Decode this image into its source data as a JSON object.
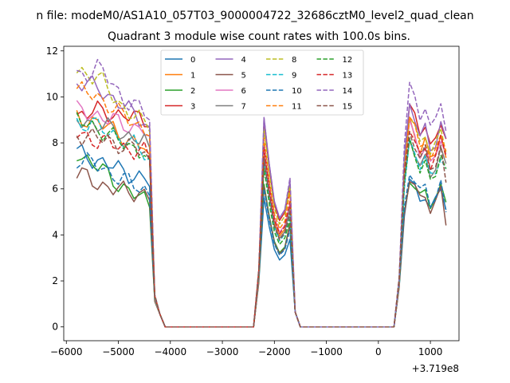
{
  "chart_data": {
    "type": "line",
    "suptitle": "n file: modeM0/AS1A10_057T03_9000004722_32686cztM0_level2_quad_clean",
    "title": "Quadrant 3 module wise count rates with 100.0s bins.",
    "xlabel": "",
    "ylabel": "",
    "offset_label": "+3.719e8",
    "xlim": [
      -6050,
      1550
    ],
    "ylim": [
      -0.6,
      12.2
    ],
    "xticks": [
      -6000,
      -5000,
      -4000,
      -3000,
      -2000,
      -1000,
      0,
      1000
    ],
    "xtick_labels": [
      "−6000",
      "−5000",
      "−4000",
      "−3000",
      "−2000",
      "−1000",
      "0",
      "1000"
    ],
    "yticks": [
      0,
      2,
      4,
      6,
      8,
      10,
      12
    ],
    "ytick_labels": [
      "0",
      "2",
      "4",
      "6",
      "8",
      "10",
      "12"
    ],
    "legend_position": "upper center",
    "segments": [
      {
        "x_start": -5800,
        "x_end": -4200
      },
      {
        "x_start": -2400,
        "x_end": -1600
      },
      {
        "x_start": 300,
        "x_end": 1200
      }
    ],
    "series": [
      {
        "name": "0",
        "color": "#1f77b4",
        "dash": "solid",
        "s1": [
          7.6,
          7.2,
          6.8,
          6.4
        ],
        "peak": 5.6,
        "s3": [
          6.3,
          5.2
        ]
      },
      {
        "name": "1",
        "color": "#ff7f0e",
        "dash": "solid",
        "s1": [
          9.1,
          8.9,
          8.3,
          7.8
        ],
        "peak": 7.6,
        "s3": [
          8.8,
          7.2
        ]
      },
      {
        "name": "2",
        "color": "#2ca02c",
        "dash": "solid",
        "s1": [
          7.6,
          6.9,
          6.1,
          5.5
        ],
        "peak": 6.2,
        "s3": [
          6.4,
          5.6
        ]
      },
      {
        "name": "3",
        "color": "#d62728",
        "dash": "solid",
        "s1": [
          9.2,
          9.4,
          9.2,
          9.0
        ],
        "peak": 8.9,
        "s3": [
          9.5,
          8.3
        ]
      },
      {
        "name": "4",
        "color": "#9467bd",
        "dash": "solid",
        "s1": [
          10.6,
          10.4,
          9.6,
          9.0
        ],
        "peak": 9.1,
        "s3": [
          9.4,
          8.0
        ]
      },
      {
        "name": "5",
        "color": "#8c564b",
        "dash": "solid",
        "s1": [
          6.7,
          6.2,
          5.9,
          5.8
        ],
        "peak": 6.1,
        "s3": [
          6.3,
          4.5
        ]
      },
      {
        "name": "6",
        "color": "#e377c2",
        "dash": "solid",
        "s1": [
          9.4,
          9.2,
          8.8,
          8.6
        ],
        "peak": 7.9,
        "s3": [
          8.6,
          7.4
        ]
      },
      {
        "name": "7",
        "color": "#7f7f7f",
        "dash": "solid",
        "s1": [
          9.0,
          8.8,
          8.4,
          8.1
        ],
        "peak": 7.4,
        "s3": [
          8.0,
          7.0
        ]
      },
      {
        "name": "8",
        "color": "#bcbd22",
        "dash": "dashed",
        "s1": [
          11.2,
          10.8,
          9.6,
          8.8
        ],
        "peak": 8.6,
        "s3": [
          9.1,
          7.8
        ]
      },
      {
        "name": "9",
        "color": "#17becf",
        "dash": "dashed",
        "s1": [
          8.9,
          8.7,
          8.2,
          7.6
        ],
        "peak": 7.2,
        "s3": [
          7.9,
          6.8
        ]
      },
      {
        "name": "10",
        "color": "#1f77b4",
        "dash": "dashed",
        "s1": [
          7.3,
          7.0,
          6.4,
          6.0
        ],
        "peak": 6.0,
        "s3": [
          6.6,
          5.0
        ]
      },
      {
        "name": "11",
        "color": "#ff7f0e",
        "dash": "dashed",
        "s1": [
          10.3,
          10.0,
          9.2,
          8.6
        ],
        "peak": 8.2,
        "s3": [
          8.9,
          7.7
        ]
      },
      {
        "name": "12",
        "color": "#2ca02c",
        "dash": "dashed",
        "s1": [
          9.0,
          8.6,
          8.0,
          7.6
        ],
        "peak": 6.9,
        "s3": [
          7.8,
          6.6
        ]
      },
      {
        "name": "13",
        "color": "#d62728",
        "dash": "dashed",
        "s1": [
          8.4,
          8.1,
          7.8,
          7.6
        ],
        "peak": 7.8,
        "s3": [
          8.5,
          7.5
        ]
      },
      {
        "name": "14",
        "color": "#9467bd",
        "dash": "dashed",
        "s1": [
          10.9,
          11.3,
          10.0,
          9.3
        ],
        "peak": 9.1,
        "s3": [
          10.4,
          8.6
        ]
      },
      {
        "name": "15",
        "color": "#8c564b",
        "dash": "dashed",
        "s1": [
          8.4,
          8.2,
          7.9,
          7.6
        ],
        "peak": 7.3,
        "s3": [
          8.3,
          6.2
        ]
      }
    ]
  }
}
